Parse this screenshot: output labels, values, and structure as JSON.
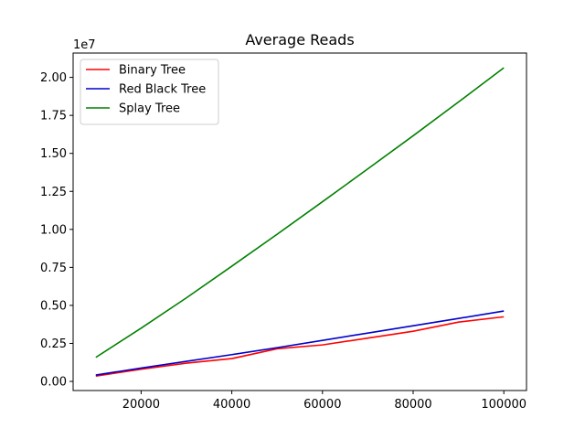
{
  "chart_data": {
    "type": "line",
    "title": "Average Reads",
    "xlabel": "",
    "ylabel": "",
    "y_offset_text": "1e7",
    "x": [
      10000,
      20000,
      30000,
      40000,
      50000,
      60000,
      70000,
      80000,
      90000,
      100000
    ],
    "xlim": [
      5000,
      105000
    ],
    "ylim": [
      -0.06,
      2.16
    ],
    "x_ticks": [
      20000,
      40000,
      60000,
      80000,
      100000
    ],
    "x_tick_labels": [
      "20000",
      "40000",
      "60000",
      "80000",
      "100000"
    ],
    "y_ticks": [
      0.0,
      0.25,
      0.5,
      0.75,
      1.0,
      1.25,
      1.5,
      1.75,
      2.0
    ],
    "y_tick_labels": [
      "0.00",
      "0.25",
      "0.50",
      "0.75",
      "1.00",
      "1.25",
      "1.50",
      "1.75",
      "2.00"
    ],
    "grid": false,
    "legend_position": "top-left",
    "series": [
      {
        "name": "Binary Tree",
        "color": "#ff0000",
        "values": [
          0.035,
          0.08,
          0.12,
          0.15,
          0.215,
          0.24,
          0.285,
          0.33,
          0.39,
          0.425
        ]
      },
      {
        "name": "Red Black Tree",
        "color": "#0000cc",
        "values": [
          0.042,
          0.088,
          0.132,
          0.176,
          0.222,
          0.27,
          0.318,
          0.366,
          0.414,
          0.463
        ]
      },
      {
        "name": "Splay Tree",
        "color": "#008000",
        "values": [
          0.158,
          0.35,
          0.55,
          0.758,
          0.968,
          1.182,
          1.398,
          1.616,
          1.838,
          2.063
        ]
      }
    ]
  }
}
